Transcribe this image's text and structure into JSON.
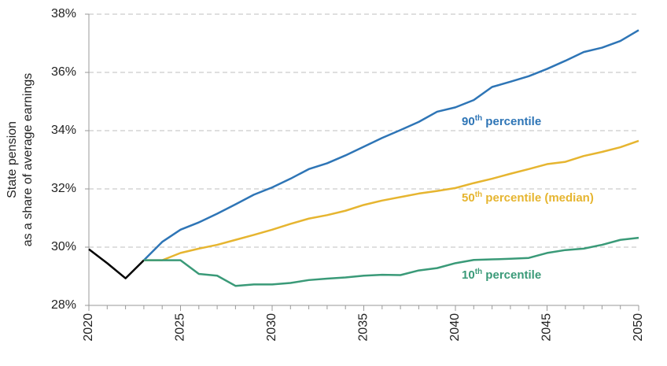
{
  "chart_data": {
    "type": "line",
    "ylabel": [
      "State pension",
      "as a share of average earnings"
    ],
    "x": [
      2020,
      2021,
      2022,
      2023,
      2024,
      2025,
      2026,
      2027,
      2028,
      2029,
      2030,
      2031,
      2032,
      2033,
      2034,
      2035,
      2036,
      2037,
      2038,
      2039,
      2040,
      2041,
      2042,
      2043,
      2044,
      2045,
      2046,
      2047,
      2048,
      2049,
      2050
    ],
    "series": [
      {
        "color": "#000000",
        "values": [
          29.93,
          29.45,
          28.93,
          29.55,
          null,
          null,
          null,
          null,
          null,
          null,
          null,
          null,
          null,
          null,
          null,
          null,
          null,
          null,
          null,
          null,
          null,
          null,
          null,
          null,
          null,
          null,
          null,
          null,
          null,
          null,
          null
        ]
      },
      {
        "name": "90th percentile",
        "color": "#2e75b6",
        "values": [
          null,
          null,
          null,
          29.55,
          30.18,
          30.6,
          30.85,
          31.15,
          31.47,
          31.8,
          32.05,
          32.35,
          32.68,
          32.88,
          33.15,
          33.45,
          33.75,
          34.02,
          34.3,
          34.65,
          34.8,
          35.05,
          35.5,
          35.68,
          35.87,
          36.12,
          36.4,
          36.7,
          36.85,
          37.08,
          37.45
        ]
      },
      {
        "name": "50th percentile (median)",
        "color": "#e6b530",
        "values": [
          null,
          null,
          null,
          29.55,
          29.55,
          29.8,
          29.95,
          30.08,
          30.25,
          30.42,
          30.6,
          30.8,
          30.98,
          31.1,
          31.25,
          31.45,
          31.6,
          31.72,
          31.84,
          31.93,
          32.03,
          32.2,
          32.35,
          32.52,
          32.68,
          32.85,
          32.93,
          33.13,
          33.27,
          33.43,
          33.65
        ]
      },
      {
        "name": "10th percentile",
        "color": "#3a9a78",
        "values": [
          null,
          null,
          null,
          29.55,
          29.55,
          29.55,
          29.08,
          29.02,
          28.67,
          28.72,
          28.72,
          28.77,
          28.87,
          28.92,
          28.96,
          29.02,
          29.05,
          29.04,
          29.2,
          29.28,
          29.45,
          29.56,
          29.58,
          29.6,
          29.63,
          29.8,
          29.9,
          29.95,
          30.08,
          30.25,
          30.32
        ]
      }
    ],
    "xlim": [
      2020,
      2050
    ],
    "xticks": [
      2020,
      2025,
      2030,
      2035,
      2040,
      2045,
      2050
    ],
    "ylim": [
      28,
      38
    ],
    "yticks": [
      {
        "value": 28,
        "label": "28%"
      },
      {
        "value": 30,
        "label": "30%"
      },
      {
        "value": 32,
        "label": "32%"
      },
      {
        "value": 34,
        "label": "34%"
      },
      {
        "value": 36,
        "label": "36%"
      },
      {
        "value": 38,
        "label": "38%"
      }
    ],
    "grid": true
  }
}
